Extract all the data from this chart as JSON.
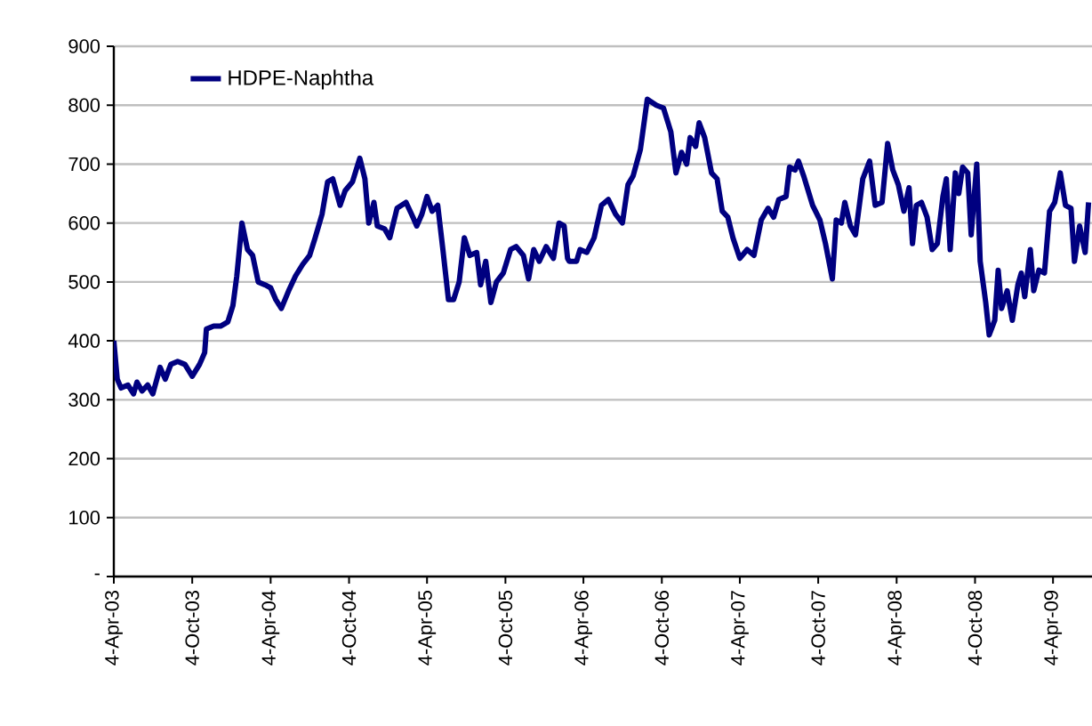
{
  "chart_data": {
    "type": "line",
    "series": [
      {
        "name": "HDPE-Naphtha",
        "color": "#000080",
        "x": [
          "2003-04-04",
          "2003-04-12",
          "2003-04-21",
          "2003-05-07",
          "2003-05-20",
          "2003-05-28",
          "2003-06-09",
          "2003-06-22",
          "2003-07-04",
          "2003-07-21",
          "2003-08-02",
          "2003-08-15",
          "2003-08-31",
          "2003-09-17",
          "2003-10-04",
          "2003-10-21",
          "2003-11-02",
          "2003-11-06",
          "2003-11-23",
          "2003-12-09",
          "2003-12-26",
          "2004-01-07",
          "2004-01-16",
          "2004-01-28",
          "2004-02-10",
          "2004-02-22",
          "2004-03-06",
          "2004-03-22",
          "2004-04-04",
          "2004-04-16",
          "2004-04-29",
          "2004-05-16",
          "2004-06-01",
          "2004-06-18",
          "2004-07-04",
          "2004-07-17",
          "2004-08-02",
          "2004-08-15",
          "2004-08-27",
          "2004-09-13",
          "2004-09-25",
          "2004-10-12",
          "2004-10-29",
          "2004-11-10",
          "2004-11-19",
          "2004-12-01",
          "2004-12-09",
          "2004-12-26",
          "2005-01-07",
          "2005-01-24",
          "2005-02-14",
          "2005-03-02",
          "2005-03-11",
          "2005-03-23",
          "2005-04-04",
          "2005-04-16",
          "2005-04-29",
          "2005-05-11",
          "2005-05-24",
          "2005-06-05",
          "2005-06-18",
          "2005-06-30",
          "2005-07-13",
          "2005-07-29",
          "2005-08-07",
          "2005-08-19",
          "2005-08-31",
          "2005-09-13",
          "2005-09-29",
          "2005-10-16",
          "2005-10-29",
          "2005-11-15",
          "2005-11-27",
          "2005-12-09",
          "2005-12-22",
          "2006-01-07",
          "2006-01-24",
          "2006-02-06",
          "2006-02-18",
          "2006-02-26",
          "2006-03-02",
          "2006-03-19",
          "2006-03-27",
          "2006-04-12",
          "2006-04-29",
          "2006-05-16",
          "2006-06-01",
          "2006-06-18",
          "2006-07-04",
          "2006-07-17",
          "2006-07-29",
          "2006-08-15",
          "2006-08-31",
          "2006-09-21",
          "2006-10-08",
          "2006-10-25",
          "2006-11-06",
          "2006-11-19",
          "2006-12-01",
          "2006-12-09",
          "2006-12-22",
          "2006-12-30",
          "2007-01-12",
          "2007-01-28",
          "2007-02-10",
          "2007-02-22",
          "2007-03-07",
          "2007-03-19",
          "2007-04-04",
          "2007-04-21",
          "2007-05-07",
          "2007-05-24",
          "2007-06-09",
          "2007-06-22",
          "2007-07-04",
          "2007-07-21",
          "2007-07-29",
          "2007-08-11",
          "2007-08-19",
          "2007-08-31",
          "2007-09-21",
          "2007-10-08",
          "2007-10-21",
          "2007-11-06",
          "2007-11-15",
          "2007-11-27",
          "2007-12-05",
          "2007-12-18",
          "2007-12-30",
          "2008-01-16",
          "2008-02-01",
          "2008-02-14",
          "2008-03-01",
          "2008-03-14",
          "2008-03-26",
          "2008-04-08",
          "2008-04-21",
          "2008-05-03",
          "2008-05-11",
          "2008-05-20",
          "2008-06-01",
          "2008-06-14",
          "2008-06-26",
          "2008-07-08",
          "2008-07-21",
          "2008-07-29",
          "2008-08-07",
          "2008-08-19",
          "2008-08-27",
          "2008-09-05",
          "2008-09-17",
          "2008-09-25",
          "2008-10-08",
          "2008-10-16",
          "2008-10-29",
          "2008-11-06",
          "2008-11-19",
          "2008-11-27",
          "2008-12-05",
          "2008-12-18",
          "2008-12-30",
          "2009-01-12",
          "2009-01-20",
          "2009-01-28",
          "2009-02-10",
          "2009-02-18",
          "2009-03-02",
          "2009-03-15",
          "2009-03-27",
          "2009-04-08",
          "2009-04-21",
          "2009-05-03",
          "2009-05-16",
          "2009-05-24",
          "2009-06-05",
          "2009-06-18",
          "2009-06-26"
        ],
        "values": [
          400,
          335,
          320,
          325,
          310,
          330,
          315,
          325,
          310,
          355,
          335,
          360,
          365,
          360,
          340,
          360,
          380,
          420,
          425,
          425,
          432,
          460,
          510,
          600,
          555,
          545,
          500,
          495,
          490,
          470,
          455,
          485,
          510,
          530,
          545,
          575,
          615,
          670,
          675,
          630,
          655,
          670,
          710,
          675,
          600,
          635,
          595,
          590,
          575,
          625,
          635,
          610,
          595,
          615,
          645,
          620,
          630,
          555,
          470,
          470,
          500,
          575,
          545,
          550,
          495,
          535,
          465,
          500,
          515,
          555,
          560,
          545,
          505,
          555,
          535,
          560,
          540,
          600,
          595,
          540,
          535,
          535,
          555,
          550,
          575,
          630,
          640,
          615,
          600,
          665,
          680,
          725,
          810,
          800,
          795,
          755,
          685,
          720,
          700,
          745,
          730,
          770,
          745,
          685,
          675,
          620,
          610,
          575,
          540,
          555,
          545,
          605,
          625,
          610,
          640,
          645,
          695,
          690,
          705,
          680,
          630,
          605,
          565,
          505,
          605,
          600,
          635,
          595,
          580,
          675,
          705,
          630,
          635,
          735,
          690,
          665,
          620,
          660,
          565,
          630,
          635,
          610,
          555,
          565,
          645,
          675,
          555,
          685,
          650,
          695,
          685,
          580,
          700,
          535,
          465,
          410,
          435,
          520,
          455,
          485,
          435,
          495,
          515,
          475,
          555,
          485,
          520,
          515,
          620,
          635,
          685,
          630,
          625,
          535,
          595,
          550,
          635
        ]
      }
    ],
    "xlim": [
      "2003-04-04",
      "2009-07-04"
    ],
    "xticks": [
      {
        "value": "2003-04-04",
        "label": "4-Apr-03"
      },
      {
        "value": "2003-10-04",
        "label": "4-Oct-03"
      },
      {
        "value": "2004-04-04",
        "label": "4-Apr-04"
      },
      {
        "value": "2004-10-04",
        "label": "4-Oct-04"
      },
      {
        "value": "2005-04-04",
        "label": "4-Apr-05"
      },
      {
        "value": "2005-10-04",
        "label": "4-Oct-05"
      },
      {
        "value": "2006-04-04",
        "label": "4-Apr-06"
      },
      {
        "value": "2006-10-04",
        "label": "4-Oct-06"
      },
      {
        "value": "2007-04-04",
        "label": "4-Apr-07"
      },
      {
        "value": "2007-10-04",
        "label": "4-Oct-07"
      },
      {
        "value": "2008-04-04",
        "label": "4-Apr-08"
      },
      {
        "value": "2008-10-04",
        "label": "4-Oct-08"
      },
      {
        "value": "2009-04-04",
        "label": "4-Apr-09"
      }
    ],
    "ylim": [
      0,
      900
    ],
    "yticks": [
      {
        "value": 0,
        "label": "-"
      },
      100,
      200,
      300,
      400,
      500,
      600,
      700,
      800,
      900
    ],
    "grid": "y",
    "legend": "top left",
    "marker": "none",
    "line_style": "solid"
  }
}
